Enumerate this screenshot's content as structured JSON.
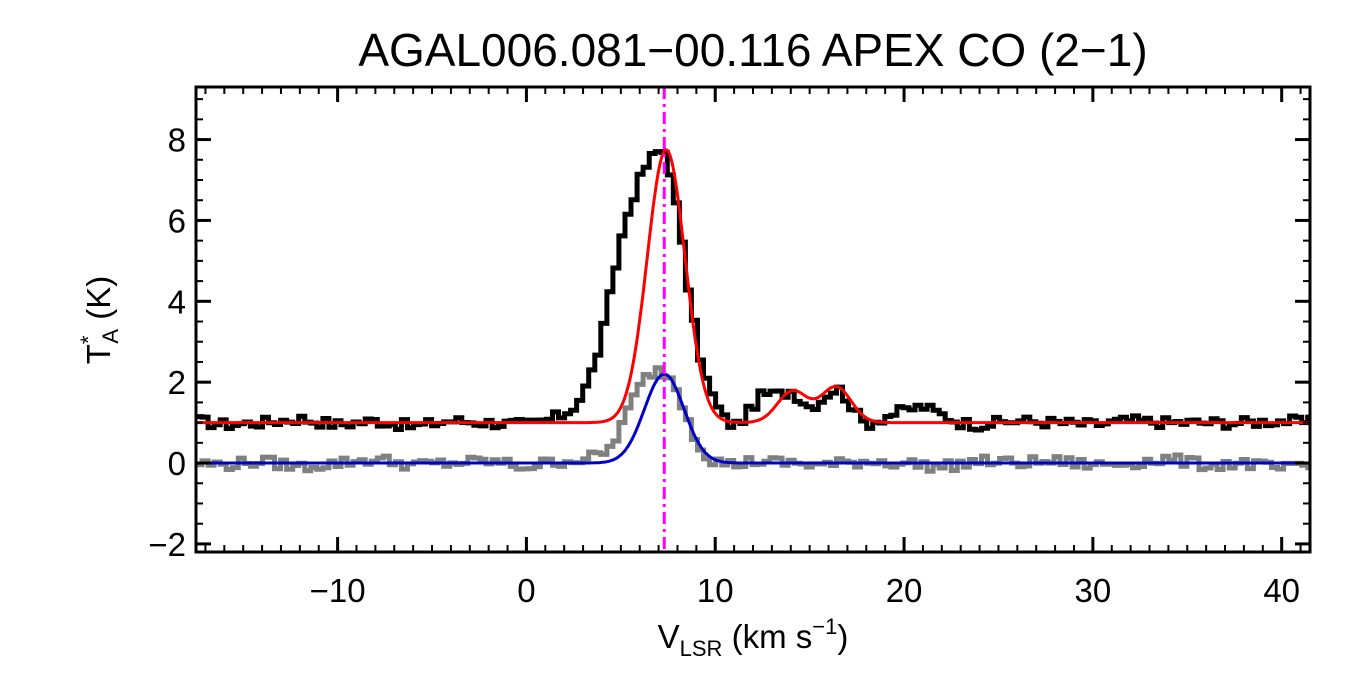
{
  "chart_data": {
    "type": "line",
    "title": "AGAL006.081−00.116  APEX CO (2−1)",
    "xlabel": {
      "main": "V",
      "sub": "LSR",
      "rest": " (km s",
      "sup": "−1",
      "end": ")"
    },
    "ylabel": {
      "main": "T",
      "sup": "*",
      "sub": "A",
      "rest": " (K)"
    },
    "xlim": [
      -17.5,
      41.5
    ],
    "ylim": [
      -2.2,
      9.3
    ],
    "xticks": [
      -10,
      0,
      10,
      20,
      30,
      40
    ],
    "xtick_labels": [
      "−10",
      "0",
      "10",
      "20",
      "30",
      "40"
    ],
    "yticks": [
      -2,
      0,
      2,
      4,
      6,
      8
    ],
    "ytick_labels": [
      "−2",
      "0",
      "2",
      "4",
      "6",
      "8"
    ],
    "x_minor_step": 1,
    "y_minor_step": 0.5,
    "grid": false,
    "reference_line": {
      "x": 7.3,
      "color": "#ff00ff",
      "style": "dash-dot"
    },
    "series": [
      {
        "role": "spectrum_offset",
        "color": "#000000",
        "x": [
          -17.5,
          -16,
          -14,
          -12,
          -10,
          -8,
          -6,
          -4,
          -2,
          0,
          1,
          2,
          2.5,
          3,
          3.5,
          4,
          4.5,
          5,
          5.5,
          6,
          6.5,
          7,
          7.3,
          7.6,
          8,
          8.5,
          9,
          9.5,
          10,
          10.5,
          11,
          11.5,
          12,
          12.5,
          13,
          13.5,
          14,
          14.5,
          15,
          15.5,
          16,
          16.5,
          17,
          17.5,
          18,
          19,
          20,
          21,
          22,
          23,
          24,
          26,
          28,
          30,
          32,
          34,
          36,
          38,
          40,
          41.5
        ],
        "y": [
          1.05,
          0.95,
          1.0,
          1.1,
          0.95,
          1.05,
          0.9,
          1.05,
          1.0,
          0.95,
          1.05,
          1.2,
          1.4,
          1.7,
          2.3,
          3.1,
          4.3,
          5.5,
          6.4,
          7.0,
          7.5,
          7.7,
          7.7,
          7.3,
          6.2,
          4.6,
          3.1,
          2.1,
          1.5,
          1.1,
          0.9,
          1.1,
          1.4,
          1.7,
          1.7,
          1.7,
          1.8,
          1.6,
          1.4,
          1.5,
          1.75,
          1.85,
          1.6,
          1.2,
          0.95,
          1.15,
          1.3,
          1.4,
          1.2,
          1.0,
          0.95,
          1.05,
          1.0,
          0.95,
          1.05,
          1.0,
          1.0,
          1.0,
          1.05,
          1.0
        ]
      },
      {
        "role": "fit_offset",
        "color": "#ff0000",
        "baseline": 1.0,
        "components": [
          {
            "amp": 6.75,
            "center": 7.4,
            "sigma": 1.0
          },
          {
            "amp": 0.78,
            "center": 14.1,
            "sigma": 0.8
          },
          {
            "amp": 0.88,
            "center": 16.4,
            "sigma": 0.8
          }
        ]
      },
      {
        "role": "spectrum",
        "color": "#808080",
        "x": [
          -17.5,
          -16,
          -14,
          -12,
          -10,
          -8,
          -6,
          -4,
          -2,
          0,
          1,
          2,
          3,
          4,
          4.5,
          5,
          5.5,
          6,
          6.5,
          7,
          7.5,
          8,
          8.5,
          9,
          9.5,
          10,
          11,
          12,
          14,
          16,
          18,
          20,
          22,
          24,
          26,
          28,
          30,
          32,
          34,
          36,
          38,
          40,
          41.5
        ],
        "y": [
          0.0,
          -0.05,
          0.05,
          -0.1,
          0.0,
          0.1,
          -0.05,
          0.0,
          0.05,
          -0.1,
          0.0,
          0.05,
          0.1,
          0.2,
          0.4,
          0.9,
          1.4,
          1.9,
          2.2,
          2.3,
          2.2,
          1.8,
          1.2,
          0.6,
          0.2,
          0.05,
          -0.05,
          0.05,
          0.0,
          -0.05,
          0.05,
          0.0,
          -0.1,
          0.05,
          0.0,
          0.05,
          -0.05,
          0.0,
          0.1,
          -0.05,
          0.0,
          -0.15,
          -0.1
        ]
      },
      {
        "role": "fit",
        "color": "#0000cd",
        "baseline": 0.0,
        "components": [
          {
            "amp": 2.2,
            "center": 7.3,
            "sigma": 1.05
          }
        ]
      }
    ]
  }
}
